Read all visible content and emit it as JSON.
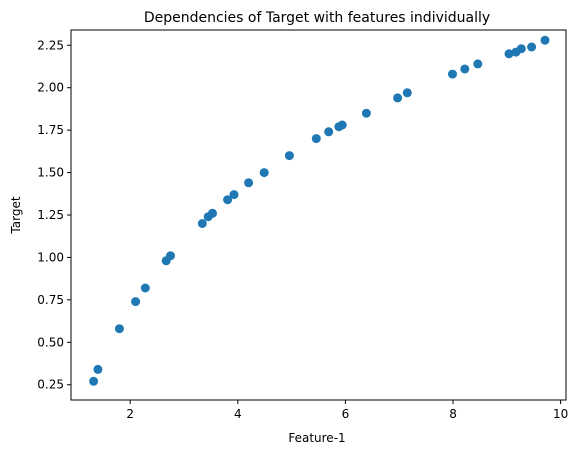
{
  "chart_data": {
    "type": "scatter",
    "title": "Dependencies of Target with features individually",
    "xlabel": "Feature-1",
    "ylabel": "Target",
    "xlim": [
      0.9,
      10.1
    ],
    "ylim": [
      0.16,
      2.34
    ],
    "xticks": [
      2,
      4,
      6,
      8,
      10
    ],
    "yticks": [
      0.25,
      0.5,
      0.75,
      1.0,
      1.25,
      1.5,
      1.75,
      2.0,
      2.25
    ],
    "xtick_labels": [
      "2",
      "4",
      "6",
      "8",
      "10"
    ],
    "ytick_labels": [
      "0.25",
      "0.50",
      "0.75",
      "1.00",
      "1.25",
      "1.50",
      "1.75",
      "2.00",
      "2.25"
    ],
    "grid": false,
    "color": "#1f77b4",
    "series": [
      {
        "x": [
          1.32,
          1.4,
          1.8,
          2.1,
          2.28,
          2.67,
          2.75,
          3.34,
          3.45,
          3.53,
          3.81,
          3.93,
          4.2,
          4.49,
          4.96,
          5.46,
          5.69,
          5.88,
          5.94,
          6.39,
          6.97,
          7.15,
          7.99,
          8.22,
          8.46,
          9.04,
          9.17,
          9.27,
          9.46,
          9.71
        ],
        "y": [
          0.27,
          0.34,
          0.58,
          0.74,
          0.82,
          0.98,
          1.01,
          1.2,
          1.24,
          1.26,
          1.34,
          1.37,
          1.44,
          1.5,
          1.6,
          1.7,
          1.74,
          1.77,
          1.78,
          1.85,
          1.94,
          1.97,
          2.08,
          2.11,
          2.14,
          2.2,
          2.21,
          2.23,
          2.24,
          2.28
        ]
      }
    ]
  }
}
